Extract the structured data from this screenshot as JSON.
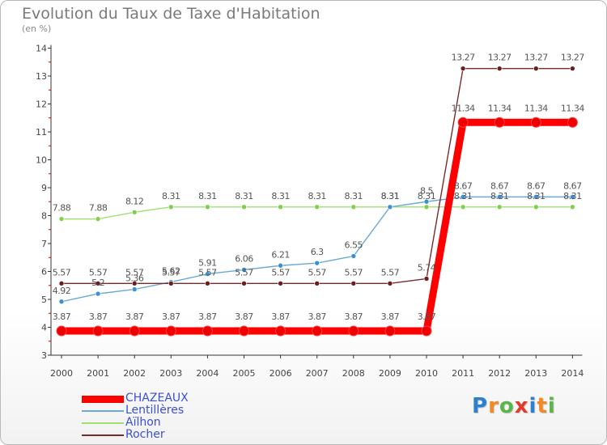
{
  "title": "Evolution du Taux de Taxe d'Habitation",
  "unit": "(en %)",
  "logo": {
    "text": "Proxiti",
    "letters": [
      {
        "char": "P",
        "color": "#2e7fcf"
      },
      {
        "char": "r",
        "color": "#f08a24"
      },
      {
        "char": "o",
        "color": "#5ab54b"
      },
      {
        "char": "x",
        "color": "#e23b2e"
      },
      {
        "char": "i",
        "color": "#2e7fcf"
      },
      {
        "char": "t",
        "color": "#f08a24"
      },
      {
        "char": "i",
        "color": "#5ab54b"
      }
    ]
  },
  "chart_data": {
    "type": "line",
    "title": "Evolution du Taux de Taxe d'Habitation",
    "ylabel": "(en %)",
    "xlabel": "",
    "ylim": [
      3,
      14
    ],
    "yticks": [
      3,
      4,
      5,
      6,
      7,
      8,
      9,
      10,
      11,
      12,
      13,
      14
    ],
    "x": [
      "2000",
      "2001",
      "2002",
      "2003",
      "2004",
      "2005",
      "2006",
      "2007",
      "2008",
      "2009",
      "2010",
      "2011",
      "2012",
      "2013",
      "2014"
    ],
    "grid": false,
    "legend_position": "bottom-left",
    "series": [
      {
        "name": "CHAZEAUX",
        "color": "#ff0000",
        "marker_color": "#ee0000",
        "values": [
          3.87,
          3.87,
          3.87,
          3.87,
          3.87,
          3.87,
          3.87,
          3.87,
          3.87,
          3.87,
          3.87,
          11.34,
          11.34,
          11.34,
          11.34
        ],
        "labels": [
          "3.87",
          "3.87",
          "3.87",
          "3.87",
          "3.87",
          "3.87",
          "3.87",
          "3.87",
          "3.87",
          "3.87",
          "3.87",
          "11.34",
          "11.34",
          "11.34",
          "11.34"
        ]
      },
      {
        "name": "Lentillères",
        "color": "#6aa9d6",
        "marker_color": "#3b8fd2",
        "values": [
          4.92,
          5.2,
          5.36,
          5.62,
          5.91,
          6.06,
          6.21,
          6.3,
          6.55,
          8.31,
          8.5,
          8.67,
          8.67,
          8.67,
          8.67
        ],
        "labels": [
          "4.92",
          "5.2",
          "5.36",
          "5.62",
          "5.91",
          "6.06",
          "6.21",
          "6.3",
          "6.55",
          "8.31",
          "8.5",
          "8.67",
          "8.67",
          "8.67",
          "8.67"
        ]
      },
      {
        "name": "Aïlhon",
        "color": "#9fe070",
        "marker_color": "#7fd04a",
        "values": [
          7.88,
          7.88,
          8.12,
          8.31,
          8.31,
          8.31,
          8.31,
          8.31,
          8.31,
          8.31,
          8.31,
          8.31,
          8.31,
          8.31,
          8.31
        ],
        "labels": [
          "7.88",
          "7.88",
          "8.12",
          "8.31",
          "8.31",
          "8.31",
          "8.31",
          "8.31",
          "8.31",
          "8.31",
          "8.31",
          "8.31",
          "8.31",
          "8.31",
          "8.31"
        ]
      },
      {
        "name": "Rocher",
        "color": "#7a2a2a",
        "marker_color": "#6b1e1e",
        "values": [
          5.57,
          5.57,
          5.57,
          5.57,
          5.57,
          5.57,
          5.57,
          5.57,
          5.57,
          5.57,
          5.74,
          13.27,
          13.27,
          13.27,
          13.27
        ],
        "labels": [
          "5.57",
          "5.57",
          "5.57",
          "5.57",
          "5.57",
          "5.57",
          "5.57",
          "5.57",
          "5.57",
          "5.57",
          "5.74",
          "13.27",
          "13.27",
          "13.27",
          "13.27"
        ]
      }
    ]
  }
}
